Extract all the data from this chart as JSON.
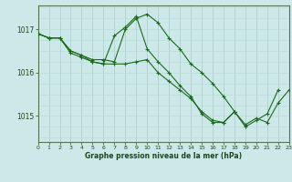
{
  "bg_color": "#cce8e8",
  "grid_color_v": "#aacccc",
  "grid_color_h": "#bbdddd",
  "line_color": "#1a6b1a",
  "marker_color": "#1a6b1a",
  "xlabel": "Graphe pression niveau de la mer (hPa)",
  "xlabel_color": "#1a4a1a",
  "tick_color": "#1a4a1a",
  "ylim": [
    1014.4,
    1017.55
  ],
  "xlim": [
    0,
    23
  ],
  "yticks": [
    1015,
    1016,
    1017
  ],
  "xticks": [
    0,
    1,
    2,
    3,
    4,
    5,
    6,
    7,
    8,
    9,
    10,
    11,
    12,
    13,
    14,
    15,
    16,
    17,
    18,
    19,
    20,
    21,
    22,
    23
  ],
  "series": [
    [
      1016.9,
      1016.8,
      1016.8,
      1016.5,
      1016.4,
      1016.3,
      1016.3,
      1016.25,
      1017.0,
      1017.25,
      1017.35,
      1017.15,
      1016.8,
      1016.55,
      1016.2,
      1016.0,
      1015.75,
      1015.45,
      1015.1,
      1014.8,
      1014.95,
      1014.85,
      1015.3,
      1015.6
    ],
    [
      1016.9,
      1016.8,
      1016.8,
      1016.5,
      1016.4,
      1016.25,
      1016.2,
      1016.85,
      1017.05,
      1017.3,
      1016.55,
      1016.25,
      1016.0,
      1015.7,
      1015.45,
      1015.05,
      1014.85,
      1014.85,
      1015.1,
      1014.75,
      1014.9,
      1015.05,
      1015.6,
      null
    ],
    [
      1016.9,
      1016.8,
      1016.8,
      1016.45,
      1016.35,
      1016.25,
      1016.2,
      1016.2,
      1016.2,
      1016.25,
      1016.3,
      1016.0,
      1015.8,
      1015.6,
      1015.4,
      1015.1,
      1014.9,
      1014.85,
      1015.1,
      null,
      null,
      null,
      null,
      null
    ]
  ]
}
